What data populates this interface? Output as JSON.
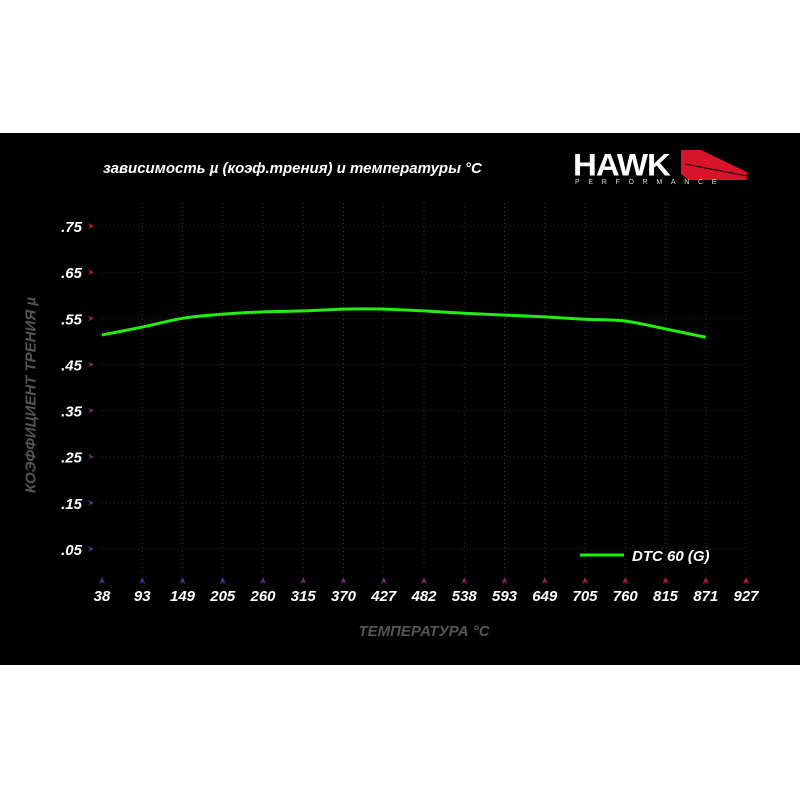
{
  "logo": {
    "brand": "HAWK",
    "sub": "PERFORMANCE"
  },
  "colors": {
    "background": "#000000",
    "series": "#22ee11",
    "axis_start": "#3a3aa0",
    "axis_end": "#cc1133"
  },
  "chart_data": {
    "type": "line",
    "title": "зависимость µ (коэф.трения) и температуры °C",
    "xlabel": "ТЕМПЕРАТУРА °C",
    "ylabel": "КОЭФФИЦИЕНТ ТРЕНИЯ µ",
    "x": [
      38,
      93,
      149,
      205,
      260,
      315,
      370,
      427,
      482,
      538,
      593,
      649,
      705,
      760,
      815,
      871,
      927
    ],
    "x_tick_labels": [
      "38",
      "93",
      "149",
      "205",
      "260",
      "315",
      "370",
      "427",
      "482",
      "538",
      "593",
      "649",
      "705",
      "760",
      "815",
      "871",
      "927"
    ],
    "y_ticks": [
      0.75,
      0.65,
      0.55,
      0.45,
      0.35,
      0.25,
      0.15,
      0.05
    ],
    "y_tick_labels": [
      ".75",
      ".65",
      ".55",
      ".45",
      ".35",
      ".25",
      ".15",
      ".05"
    ],
    "ylim": [
      0,
      0.8
    ],
    "grid": true,
    "legend": "bottom-right",
    "series": [
      {
        "name": "DTC 60 (G)",
        "color": "#22ee11",
        "values": [
          0.514,
          0.531,
          0.55,
          0.559,
          0.564,
          0.566,
          0.57,
          0.57,
          0.566,
          0.561,
          0.557,
          0.553,
          0.548,
          0.544,
          0.527,
          0.509,
          null
        ]
      }
    ]
  }
}
